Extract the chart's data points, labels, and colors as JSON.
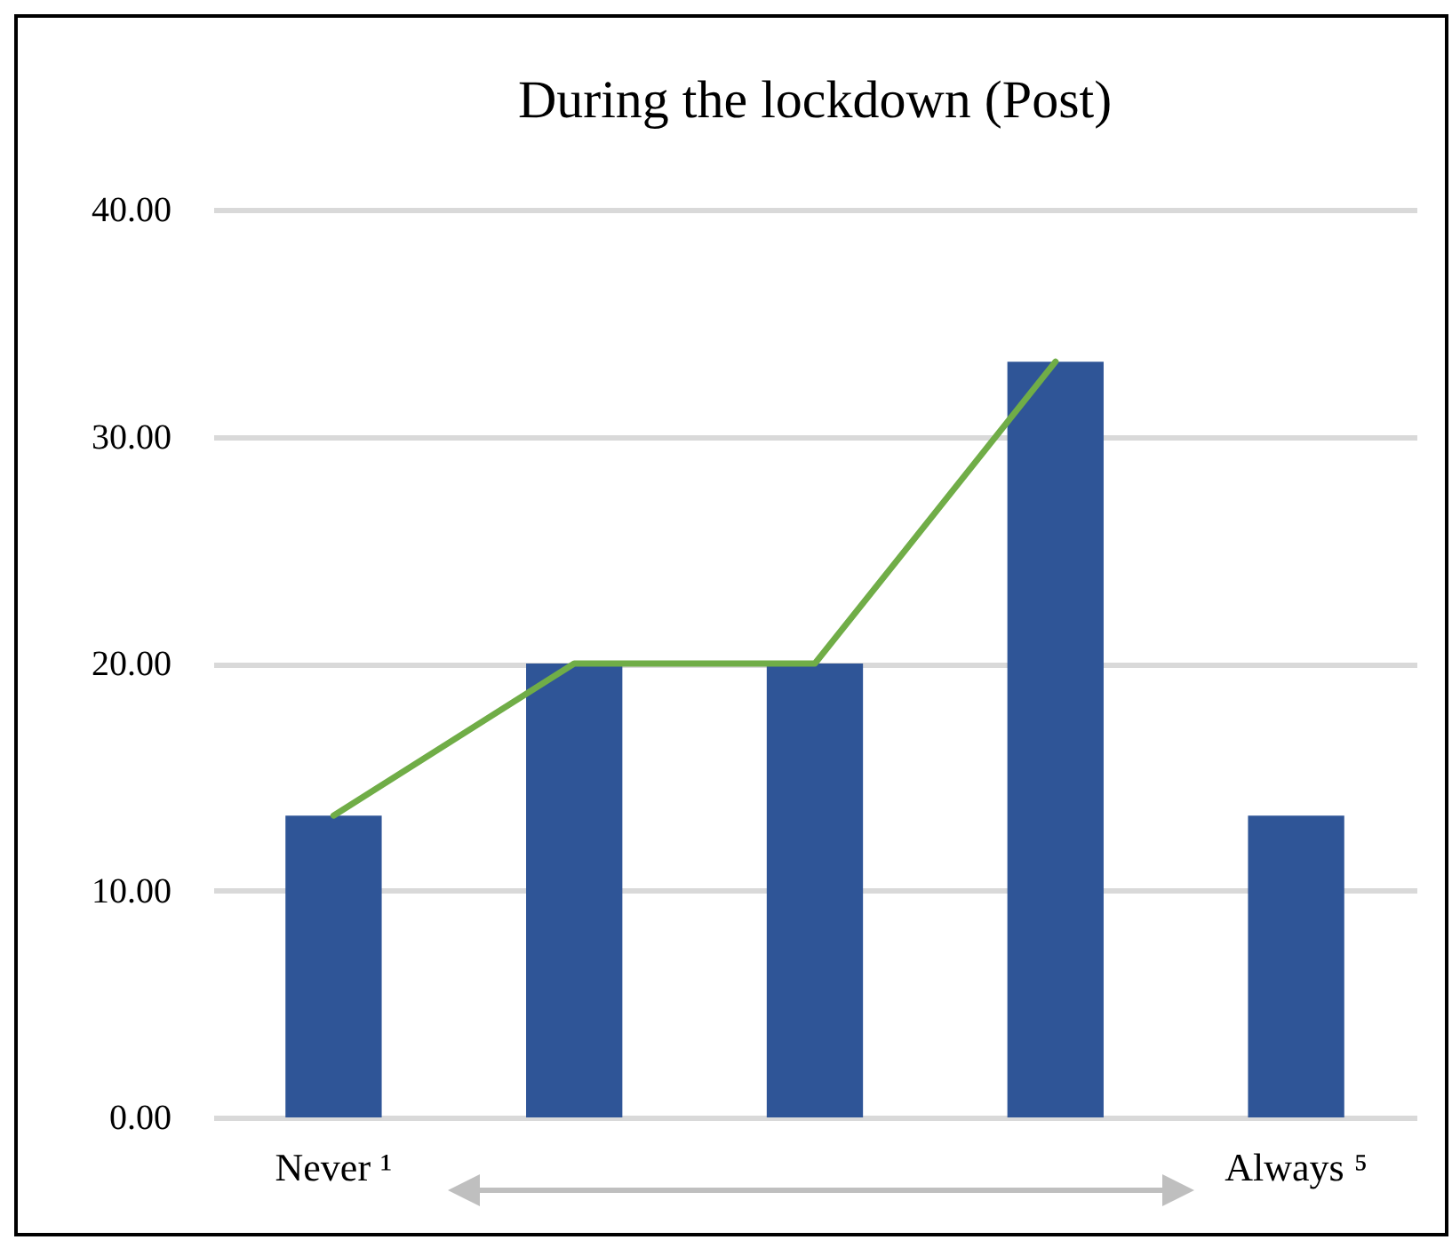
{
  "chart_data": {
    "type": "bar",
    "title": "During the lockdown (Post)",
    "categories": [
      "Never ¹",
      null,
      null,
      null,
      "Always ⁵"
    ],
    "series": [
      {
        "color": "#2f5597",
        "values": [
          13.3,
          20,
          20,
          33.3,
          13.3
        ]
      },
      {
        "type": "line",
        "color": "#70ad47",
        "values": [
          13.3,
          20,
          20,
          33.3,
          null
        ]
      }
    ],
    "ylim": [
      0,
      40
    ],
    "yticks": [
      {
        "value": 0,
        "label": "0.00"
      },
      {
        "value": 10,
        "label": "10.00"
      },
      {
        "value": 20,
        "label": "20.00"
      },
      {
        "value": 30,
        "label": "30.00"
      },
      {
        "value": 40,
        "label": "40.00"
      }
    ],
    "grid": "y"
  }
}
